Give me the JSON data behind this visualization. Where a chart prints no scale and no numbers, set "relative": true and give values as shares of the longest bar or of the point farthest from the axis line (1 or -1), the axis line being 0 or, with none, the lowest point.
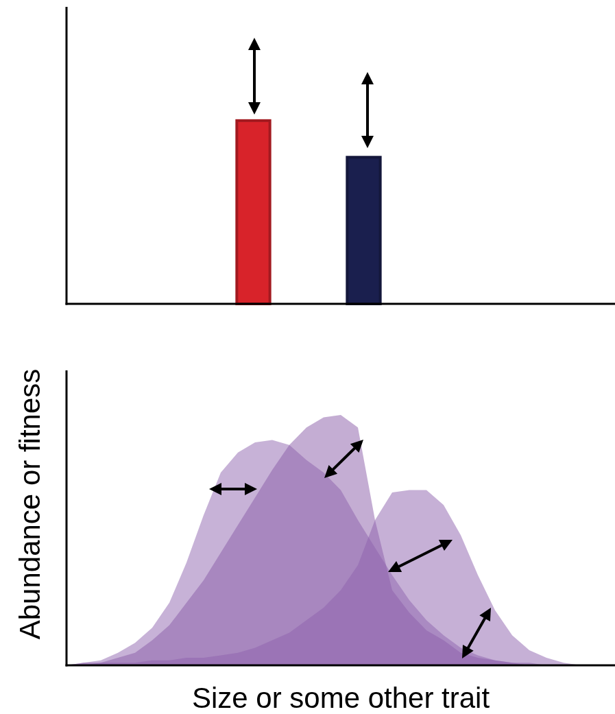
{
  "chart_data": [
    {
      "type": "bar",
      "relative": true,
      "categories": [
        null,
        null
      ],
      "values": [
        1,
        0.8
      ],
      "colors": [
        "#d8232a",
        "#1a1f4e"
      ]
    },
    {
      "type": "area",
      "relative": true,
      "xlabel": "Size or some other trait",
      "ylabel": "Abundance or fitness",
      "categories": [
        null,
        null,
        null,
        null,
        null,
        null,
        null,
        null,
        null,
        null,
        null,
        null,
        null,
        null,
        null,
        null,
        null,
        null,
        null,
        null,
        null,
        null,
        null,
        null,
        null,
        null,
        null,
        null,
        null,
        null,
        null,
        null,
        null
      ],
      "series": [
        {
          "color": "#9066b0",
          "values": [
            0,
            0.01,
            0.02,
            0.05,
            0.09,
            0.15,
            0.25,
            0.41,
            0.6,
            0.77,
            0.85,
            0.89,
            0.9,
            0.88,
            0.82,
            0.77,
            0.7,
            0.58,
            0.47,
            0.36,
            0.26,
            0.18,
            0.12,
            0.07,
            0.04,
            0.02,
            0.01,
            0.01,
            0,
            0,
            0,
            0,
            0
          ]
        },
        {
          "color": "#8a5ca8",
          "values": [
            0,
            0.01,
            0.01,
            0.03,
            0.05,
            0.1,
            0.16,
            0.25,
            0.34,
            0.45,
            0.56,
            0.67,
            0.78,
            0.88,
            0.95,
            0.99,
            1,
            0.95,
            0.58,
            0.3,
            0.21,
            0.14,
            0.1,
            0.05,
            0.03,
            0.02,
            0.01,
            0,
            0,
            0,
            0,
            0,
            0
          ]
        },
        {
          "color": "#8d61ad",
          "values": [
            0,
            0,
            0.01,
            0.01,
            0.01,
            0.02,
            0.02,
            0.03,
            0.03,
            0.04,
            0.05,
            0.07,
            0.1,
            0.13,
            0.18,
            0.23,
            0.3,
            0.4,
            0.58,
            0.69,
            0.7,
            0.7,
            0.64,
            0.52,
            0.36,
            0.22,
            0.12,
            0.06,
            0.03,
            0.01,
            0,
            0,
            0
          ]
        }
      ]
    }
  ]
}
